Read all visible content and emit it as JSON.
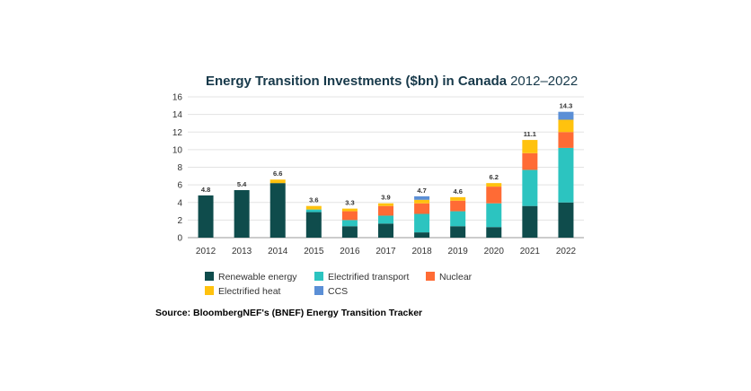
{
  "chart_data": {
    "type": "bar",
    "stacked": true,
    "title": "Energy Transition Investments ($bn) in Canada",
    "title_years": "2012–2022",
    "categories": [
      "2012",
      "2013",
      "2014",
      "2015",
      "2016",
      "2017",
      "2018",
      "2019",
      "2020",
      "2021",
      "2022"
    ],
    "series": [
      {
        "name": "Renewable energy",
        "color": "#0f4c4c",
        "values": [
          4.8,
          5.4,
          6.2,
          2.9,
          1.3,
          1.6,
          0.6,
          1.3,
          1.2,
          3.6,
          4.0
        ]
      },
      {
        "name": "Electrified transport",
        "color": "#2cc4c0",
        "values": [
          0,
          0,
          0,
          0.3,
          0.7,
          0.9,
          2.1,
          1.7,
          2.7,
          4.1,
          6.2
        ]
      },
      {
        "name": "Nuclear",
        "color": "#ff6b35",
        "values": [
          0,
          0,
          0,
          0,
          1.0,
          1.1,
          1.2,
          1.2,
          1.9,
          1.9,
          1.8
        ]
      },
      {
        "name": "Electrified heat",
        "color": "#ffc20e",
        "values": [
          0,
          0,
          0.4,
          0.4,
          0.3,
          0.3,
          0.4,
          0.4,
          0.4,
          1.5,
          1.4
        ]
      },
      {
        "name": "CCS",
        "color": "#5b8fd6",
        "values": [
          0,
          0,
          0,
          0,
          0,
          0,
          0.4,
          0,
          0,
          0,
          0.9
        ]
      }
    ],
    "totals": [
      "4.8",
      "5.4",
      "6.6",
      "3.6",
      "3.3",
      "3.9",
      "4.7",
      "4.6",
      "6.2",
      "11.1",
      "14.3"
    ],
    "ylim": [
      0,
      16
    ],
    "yticks": [
      0,
      2,
      4,
      6,
      8,
      10,
      12,
      14,
      16
    ],
    "xlabel": "",
    "ylabel": "",
    "grid": true,
    "legend_position": "bottom"
  },
  "source": "Source: BloombergNEF's (BNEF) Energy Transition Tracker"
}
